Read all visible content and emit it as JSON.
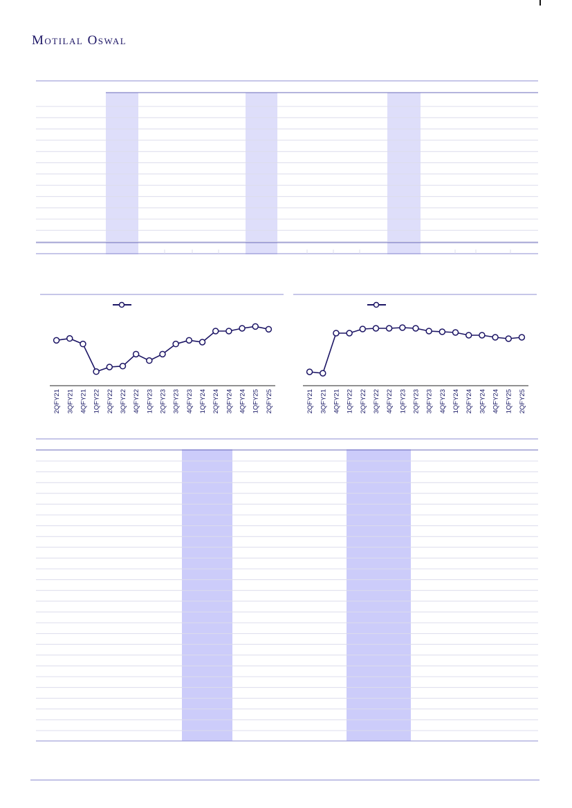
{
  "header": {
    "logo_text": "Motilal Oswal"
  },
  "colors": {
    "brand_navy": "#1b1464",
    "rule": "#8c8cd0",
    "grid": "#dcdcec",
    "highlight_light": "#dedefa",
    "highlight_strong": "#ccccfa",
    "series_line": "#1b1464",
    "marker_fill": "#ffffff"
  },
  "table_top": {
    "row_count": 13,
    "highlight_columns": 3
  },
  "table_bottom": {
    "row_count": 26,
    "highlight_columns": 2
  },
  "chart_data": [
    {
      "type": "line",
      "title": "",
      "legend": [
        ""
      ],
      "categories": [
        "2QFY21",
        "3QFY21",
        "4QFY21",
        "1QFY22",
        "2QFY22",
        "3QFY22",
        "4QFY22",
        "1QFY23",
        "2QFY23",
        "3QFY23",
        "4QFY23",
        "1QFY24",
        "2QFY24",
        "3QFY24",
        "4QFY24",
        "1QFY25",
        "2QFY25"
      ],
      "series": [
        {
          "values": [
            72,
            74,
            68,
            38,
            43,
            44,
            57,
            50,
            57,
            68,
            72,
            70,
            82,
            82,
            85,
            87,
            84
          ]
        }
      ],
      "ylim": [
        25,
        100
      ],
      "grid": false,
      "legend_placement": "top-center"
    },
    {
      "type": "line",
      "title": "",
      "legend": [
        ""
      ],
      "categories": [
        "2QFY21",
        "3QFY21",
        "4QFY21",
        "1QFY22",
        "2QFY22",
        "3QFY22",
        "4QFY22",
        "1QFY23",
        "2QFY23",
        "3QFY23",
        "4QFY23",
        "1QFY24",
        "2QFY24",
        "3QFY24",
        "4QFY24",
        "1QFY25",
        "2QFY25"
      ],
      "series": [
        {
          "values": [
            17,
            15,
            73,
            73,
            79,
            80,
            80,
            81,
            80,
            76,
            75,
            74,
            70,
            70,
            67,
            65,
            67
          ]
        }
      ],
      "ylim": [
        0,
        100
      ],
      "grid": false,
      "legend_placement": "top-center"
    }
  ]
}
